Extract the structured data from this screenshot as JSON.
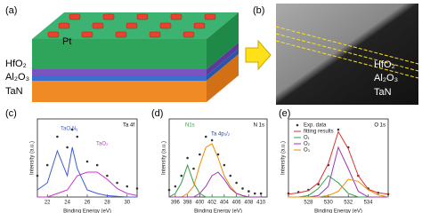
{
  "panels": {
    "a": {
      "label": "(a)",
      "layers": [
        "Pt",
        "HfO₂",
        "Al₂O₃",
        "TaN"
      ]
    },
    "b": {
      "label": "(b)",
      "layers": [
        "HfO₂",
        "Al₂O₃",
        "TaN"
      ]
    }
  },
  "chart_data": [
    {
      "type": "line",
      "label": "(c)",
      "title": "Ta 4f",
      "x_label": "Binding Energy (eV)",
      "y_label": "Intensity (a.u.)",
      "annotations": [
        "TaOₓNᵧ",
        "TaO₂"
      ],
      "x": [
        21,
        22,
        23,
        24,
        24.5,
        25,
        26,
        27,
        28,
        29,
        30,
        31
      ],
      "xlim": [
        21,
        31
      ],
      "xticks": [
        22,
        24,
        26,
        28,
        30
      ],
      "ylim": [
        0,
        1.1
      ],
      "series": [
        {
          "name": "Exp. data",
          "color": "#333333",
          "marker": true,
          "values": [
            0.3,
            0.45,
            0.85,
            0.7,
            0.95,
            0.85,
            0.5,
            0.45,
            0.3,
            0.2,
            0.15,
            0.12
          ]
        },
        {
          "name": "TaOₓNᵧ",
          "color": "#3b5bdb",
          "values": [
            0.1,
            0.2,
            0.65,
            0.3,
            0.7,
            0.4,
            0.1,
            0.05,
            0.02,
            0.01,
            0,
            0
          ]
        },
        {
          "name": "TaO₂",
          "color": "#cc33cc",
          "values": [
            0,
            0,
            0.05,
            0.1,
            0.2,
            0.3,
            0.35,
            0.35,
            0.25,
            0.12,
            0.05,
            0.02
          ]
        }
      ]
    },
    {
      "type": "line",
      "label": "(d)",
      "title": "N 1s",
      "x_label": "Binding Energy (eV)",
      "y_label": "Intensity (a.u.)",
      "annotations": [
        "N1s",
        "Ta 4p₃/₂"
      ],
      "x": [
        395,
        396,
        397,
        398,
        399,
        400,
        401,
        402,
        403,
        404,
        405,
        406,
        407,
        408,
        409,
        410
      ],
      "xlim": [
        395,
        411
      ],
      "xticks": [
        396,
        398,
        400,
        402,
        404,
        406,
        408,
        410
      ],
      "ylim": [
        0,
        1.1
      ],
      "series": [
        {
          "name": "Exp. data",
          "color": "#333333",
          "marker": true,
          "values": [
            0.1,
            0.15,
            0.3,
            0.55,
            0.4,
            0.6,
            0.85,
            0.8,
            0.6,
            0.45,
            0.3,
            0.2,
            0.12,
            0.08,
            0.05,
            0.05
          ]
        },
        {
          "name": "N1s",
          "color": "#2f9e44",
          "values": [
            0,
            0.05,
            0.2,
            0.45,
            0.2,
            0.05,
            0,
            0,
            0,
            0,
            0,
            0,
            0,
            0,
            0,
            0
          ]
        },
        {
          "name": "Ta 4p₃/₂",
          "color": "#f08c00",
          "values": [
            0,
            0,
            0,
            0.05,
            0.15,
            0.45,
            0.7,
            0.75,
            0.55,
            0.3,
            0.15,
            0.05,
            0.02,
            0,
            0,
            0
          ]
        },
        {
          "name": "Ta 4p",
          "color": "#9c36b5",
          "values": [
            0,
            0,
            0,
            0,
            0,
            0.05,
            0.15,
            0.3,
            0.35,
            0.25,
            0.12,
            0.05,
            0.02,
            0,
            0,
            0
          ]
        }
      ]
    },
    {
      "type": "line",
      "label": "(e)",
      "title": "O 1s",
      "x_label": "Binding Energy (eV)",
      "y_label": "Intensity (a.u.)",
      "x": [
        526,
        527,
        528,
        529,
        530,
        531,
        532,
        533,
        534,
        535,
        536
      ],
      "xlim": [
        526,
        536
      ],
      "xticks": [
        528,
        530,
        532,
        534
      ],
      "ylim": [
        0,
        1.1
      ],
      "series": [
        {
          "name": "Exp. data",
          "color": "#333333",
          "marker": true,
          "values": [
            0.05,
            0.07,
            0.1,
            0.18,
            0.45,
            0.95,
            0.7,
            0.3,
            0.12,
            0.06,
            0.04
          ]
        },
        {
          "name": "fitting results",
          "color": "#e03131",
          "values": [
            0.04,
            0.06,
            0.09,
            0.2,
            0.47,
            0.92,
            0.68,
            0.3,
            0.11,
            0.06,
            0.04
          ]
        },
        {
          "name": "O₁",
          "color": "#2f9e44",
          "values": [
            0,
            0,
            0.02,
            0.12,
            0.3,
            0.2,
            0.05,
            0,
            0,
            0,
            0
          ]
        },
        {
          "name": "O₂",
          "color": "#9c36b5",
          "values": [
            0,
            0,
            0,
            0.02,
            0.15,
            0.7,
            0.4,
            0.08,
            0,
            0,
            0
          ]
        },
        {
          "name": "O₃",
          "color": "#f08c00",
          "values": [
            0,
            0,
            0,
            0,
            0.02,
            0.08,
            0.25,
            0.22,
            0.1,
            0.03,
            0
          ]
        }
      ]
    }
  ]
}
